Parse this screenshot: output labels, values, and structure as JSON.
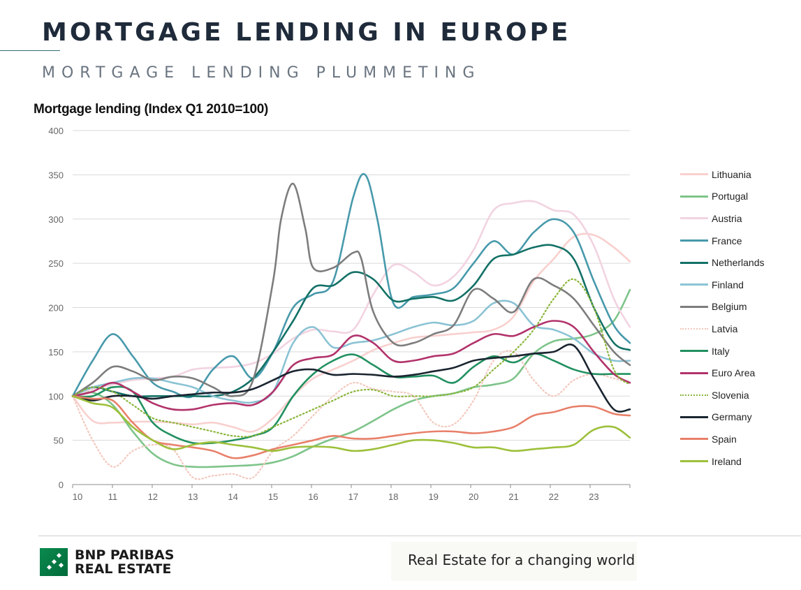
{
  "header": {
    "title": "MORTGAGE LENDING IN EUROPE",
    "subtitle": "MORTGAGE LENDING PLUMMETING"
  },
  "footer": {
    "brand_line1": "BNP PARIBAS",
    "brand_line2": "REAL ESTATE",
    "tagline": "Real Estate for a changing world"
  },
  "chart_data": {
    "type": "line",
    "title": "Mortgage lending (Index Q1 2010=100)",
    "xlabel": "",
    "ylabel": "",
    "xlim": [
      10,
      23.9
    ],
    "ylim": [
      0,
      400
    ],
    "yticks": [
      0,
      50,
      100,
      150,
      200,
      250,
      300,
      350,
      400
    ],
    "xticks": [
      "10",
      "11",
      "12",
      "13",
      "14",
      "15",
      "16",
      "17",
      "18",
      "19",
      "20",
      "21",
      "22",
      "23"
    ],
    "grid": "horizontal",
    "legend_position": "right",
    "series": [
      {
        "name": "Lithuania",
        "color": "#f8d0ce",
        "dash": "solid",
        "x": [
          10,
          10.5,
          11,
          11.5,
          12,
          12.5,
          13,
          13.5,
          14,
          14.5,
          15,
          15.5,
          16,
          16.5,
          17,
          17.5,
          18,
          18.5,
          19,
          19.5,
          20,
          20.5,
          21,
          21.5,
          22,
          22.5,
          23,
          23.5,
          23.9
        ],
        "y": [
          100,
          72,
          70,
          71,
          71,
          70,
          68,
          70,
          65,
          60,
          75,
          100,
          120,
          130,
          140,
          152,
          160,
          166,
          168,
          170,
          172,
          175,
          190,
          230,
          255,
          280,
          282,
          268,
          252
        ]
      },
      {
        "name": "Portugal",
        "color": "#7ec48a",
        "dash": "solid",
        "x": [
          10,
          10.5,
          11,
          11.5,
          12,
          12.5,
          13,
          13.5,
          14,
          14.5,
          15,
          15.5,
          16,
          16.5,
          17,
          17.5,
          18,
          18.5,
          19,
          19.5,
          20,
          20.5,
          21,
          21.5,
          22,
          22.5,
          23,
          23.5,
          23.9
        ],
        "y": [
          100,
          104,
          90,
          60,
          35,
          23,
          20,
          20,
          21,
          22,
          25,
          32,
          43,
          52,
          60,
          72,
          85,
          95,
          100,
          103,
          110,
          113,
          120,
          148,
          162,
          165,
          170,
          185,
          220
        ]
      },
      {
        "name": "Austria",
        "color": "#f2d3e1",
        "dash": "solid",
        "x": [
          10,
          10.5,
          11,
          11.5,
          12,
          12.5,
          13,
          13.5,
          14,
          14.5,
          15,
          15.5,
          16,
          16.5,
          17,
          17.5,
          18,
          18.5,
          19,
          19.5,
          20,
          20.5,
          21,
          21.5,
          22,
          22.5,
          23,
          23.5,
          23.9
        ],
        "y": [
          100,
          108,
          113,
          118,
          120,
          122,
          130,
          132,
          133,
          137,
          148,
          165,
          175,
          173,
          175,
          215,
          248,
          240,
          225,
          235,
          265,
          310,
          318,
          320,
          310,
          305,
          270,
          210,
          178
        ]
      },
      {
        "name": "France",
        "color": "#4799ab",
        "dash": "solid",
        "x": [
          10,
          10.5,
          11,
          11.5,
          12,
          12.5,
          13,
          13.5,
          14,
          14.5,
          15,
          15.5,
          16,
          16.5,
          17,
          17.3,
          17.6,
          18,
          18.5,
          19,
          19.5,
          20,
          20.5,
          21,
          21.5,
          22,
          22.5,
          23,
          23.5,
          23.9
        ],
        "y": [
          100,
          140,
          170,
          145,
          115,
          105,
          100,
          130,
          145,
          120,
          150,
          200,
          215,
          230,
          325,
          350,
          300,
          205,
          212,
          215,
          222,
          250,
          275,
          260,
          285,
          300,
          285,
          230,
          180,
          160
        ]
      },
      {
        "name": "Netherlands",
        "color": "#137166",
        "dash": "solid",
        "x": [
          10,
          10.5,
          11,
          11.5,
          12,
          12.5,
          13,
          13.5,
          14,
          14.5,
          15,
          15.5,
          16,
          16.5,
          17,
          17.5,
          18,
          18.5,
          19,
          19.5,
          20,
          20.5,
          21,
          21.5,
          22,
          22.5,
          23,
          23.5,
          23.9
        ],
        "y": [
          100,
          110,
          105,
          100,
          100,
          100,
          100,
          100,
          105,
          120,
          150,
          185,
          222,
          225,
          240,
          232,
          208,
          210,
          212,
          208,
          225,
          255,
          260,
          268,
          270,
          255,
          200,
          160,
          152
        ]
      },
      {
        "name": "Finland",
        "color": "#8bc3d4",
        "dash": "solid",
        "x": [
          10,
          10.5,
          11,
          11.5,
          12,
          12.5,
          13,
          13.5,
          14,
          14.5,
          15,
          15.5,
          16,
          16.5,
          17,
          17.5,
          18,
          18.5,
          19,
          19.5,
          20,
          20.5,
          21,
          21.5,
          22,
          22.5,
          23,
          23.5,
          23.9
        ],
        "y": [
          100,
          110,
          115,
          120,
          120,
          115,
          110,
          100,
          95,
          93,
          105,
          160,
          178,
          155,
          160,
          163,
          170,
          178,
          183,
          180,
          185,
          205,
          205,
          180,
          175,
          165,
          148,
          140,
          140
        ]
      },
      {
        "name": "Belgium",
        "color": "#7d7d7d",
        "dash": "solid",
        "x": [
          10,
          10.5,
          11,
          11.5,
          12,
          12.5,
          13,
          13.5,
          14,
          14.5,
          15,
          15.2,
          15.5,
          15.8,
          16,
          16.5,
          17,
          17.2,
          17.5,
          18,
          18.5,
          19,
          19.5,
          20,
          20.5,
          21,
          21.5,
          22,
          22.5,
          23,
          23.5,
          23.9
        ],
        "y": [
          100,
          115,
          133,
          128,
          118,
          122,
          120,
          110,
          100,
          118,
          230,
          300,
          340,
          290,
          245,
          245,
          262,
          255,
          195,
          160,
          160,
          170,
          180,
          220,
          210,
          195,
          232,
          225,
          210,
          180,
          150,
          135
        ]
      },
      {
        "name": "Latvia",
        "color": "#f3c8bd",
        "dash": "dotted",
        "x": [
          10,
          10.5,
          11,
          11.5,
          12,
          12.5,
          13,
          13.5,
          14,
          14.5,
          15,
          15.5,
          16,
          16.5,
          17,
          17.5,
          18,
          18.5,
          19,
          19.5,
          20,
          20.5,
          21,
          21.5,
          22,
          22.5,
          23,
          23.5,
          23.9
        ],
        "y": [
          100,
          50,
          20,
          38,
          45,
          40,
          8,
          10,
          12,
          8,
          38,
          55,
          78,
          100,
          115,
          108,
          105,
          100,
          70,
          68,
          95,
          140,
          150,
          118,
          100,
          118,
          125,
          120,
          115
        ]
      },
      {
        "name": "Italy",
        "color": "#219060",
        "dash": "solid",
        "x": [
          10,
          10.5,
          11,
          11.5,
          12,
          12.5,
          13,
          13.5,
          14,
          14.5,
          15,
          15.5,
          16,
          16.5,
          17,
          17.5,
          18,
          18.5,
          19,
          19.5,
          20,
          20.5,
          21,
          21.5,
          22,
          22.5,
          23,
          23.5,
          23.9
        ],
        "y": [
          100,
          100,
          110,
          105,
          70,
          55,
          47,
          47,
          50,
          55,
          65,
          100,
          125,
          140,
          147,
          135,
          122,
          122,
          123,
          115,
          133,
          145,
          138,
          148,
          140,
          130,
          125,
          125,
          125
        ]
      },
      {
        "name": "Euro Area",
        "color": "#b2336b",
        "dash": "solid",
        "x": [
          10,
          10.5,
          11,
          11.5,
          12,
          12.5,
          13,
          13.5,
          14,
          14.5,
          15,
          15.5,
          16,
          16.5,
          17,
          17.5,
          18,
          18.5,
          19,
          19.5,
          20,
          20.5,
          21,
          21.5,
          22,
          22.5,
          23,
          23.5,
          23.9
        ],
        "y": [
          100,
          105,
          115,
          105,
          92,
          85,
          85,
          90,
          92,
          90,
          105,
          135,
          143,
          147,
          168,
          160,
          140,
          140,
          145,
          148,
          160,
          170,
          168,
          178,
          185,
          178,
          150,
          125,
          115
        ]
      },
      {
        "name": "Slovenia",
        "color": "#8ab53a",
        "dash": "dotted",
        "x": [
          10,
          10.5,
          11,
          11.5,
          12,
          12.5,
          13,
          13.5,
          14,
          14.5,
          15,
          15.5,
          16,
          16.5,
          17,
          17.5,
          18,
          18.5,
          19,
          19.5,
          20,
          20.5,
          21,
          21.5,
          22,
          22.5,
          23,
          23.5,
          23.9
        ],
        "y": [
          100,
          110,
          105,
          90,
          75,
          70,
          65,
          60,
          55,
          55,
          65,
          75,
          85,
          95,
          105,
          107,
          100,
          100,
          100,
          103,
          110,
          130,
          150,
          175,
          210,
          232,
          200,
          130,
          113
        ]
      },
      {
        "name": "Germany",
        "color": "#1a2530",
        "dash": "solid",
        "x": [
          10,
          10.5,
          11,
          11.5,
          12,
          12.5,
          13,
          13.5,
          14,
          14.5,
          15,
          15.5,
          16,
          16.5,
          17,
          17.5,
          18,
          18.5,
          19,
          19.5,
          20,
          20.5,
          21,
          21.5,
          22,
          22.5,
          23,
          23.5,
          23.9
        ],
        "y": [
          100,
          95,
          100,
          100,
          97,
          100,
          102,
          104,
          104,
          108,
          118,
          128,
          130,
          124,
          125,
          124,
          122,
          124,
          128,
          132,
          140,
          143,
          145,
          148,
          150,
          157,
          120,
          85,
          85
        ]
      },
      {
        "name": "Spain",
        "color": "#e8806a",
        "dash": "solid",
        "x": [
          10,
          10.5,
          11,
          11.5,
          12,
          12.5,
          13,
          13.5,
          14,
          14.5,
          15,
          15.5,
          16,
          16.5,
          17,
          17.5,
          18,
          18.5,
          19,
          19.5,
          20,
          20.5,
          21,
          21.5,
          22,
          22.5,
          23,
          23.5,
          23.9
        ],
        "y": [
          100,
          97,
          95,
          70,
          50,
          45,
          42,
          38,
          30,
          33,
          40,
          45,
          50,
          55,
          52,
          52,
          55,
          58,
          60,
          60,
          58,
          60,
          65,
          78,
          82,
          88,
          88,
          80,
          78
        ]
      },
      {
        "name": "Ireland",
        "color": "#9dc03a",
        "dash": "solid",
        "x": [
          10,
          10.5,
          11,
          11.5,
          12,
          12.5,
          13,
          13.5,
          14,
          14.5,
          15,
          15.5,
          16,
          16.5,
          17,
          17.5,
          18,
          18.5,
          19,
          19.5,
          20,
          20.5,
          21,
          21.5,
          22,
          22.5,
          23,
          23.5,
          23.9
        ],
        "y": [
          100,
          92,
          87,
          65,
          50,
          40,
          45,
          48,
          45,
          42,
          38,
          42,
          43,
          42,
          38,
          40,
          45,
          50,
          50,
          47,
          42,
          42,
          38,
          40,
          42,
          45,
          62,
          65,
          53
        ]
      }
    ]
  }
}
